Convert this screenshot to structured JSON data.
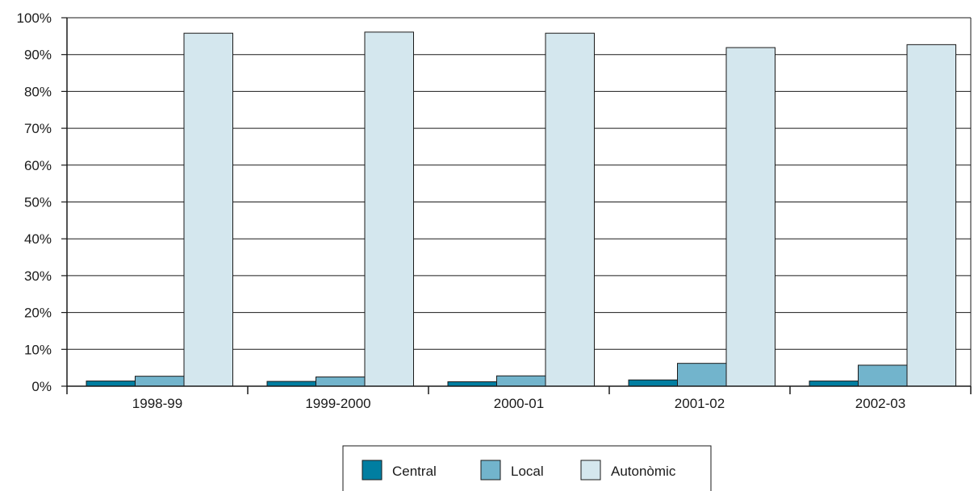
{
  "chart_data": {
    "type": "bar",
    "categories": [
      "1998-99",
      "1999-2000",
      "2000-01",
      "2001-02",
      "2002-03"
    ],
    "series": [
      {
        "name": "Central",
        "values": [
          1.4,
          1.3,
          1.2,
          1.7,
          1.4
        ],
        "color": "#007ea1"
      },
      {
        "name": "Local",
        "values": [
          2.7,
          2.5,
          2.8,
          6.2,
          5.7
        ],
        "color": "#72b4cc"
      },
      {
        "name": "Autonòmic",
        "values": [
          95.8,
          96.1,
          95.8,
          91.9,
          92.7
        ],
        "color": "#d4e7ee"
      }
    ],
    "yticks": [
      "0%",
      "10%",
      "20%",
      "30%",
      "40%",
      "50%",
      "60%",
      "70%",
      "80%",
      "90%",
      "100%"
    ],
    "ylim": [
      0,
      100
    ],
    "grid": true,
    "legend_position": "bottom-center",
    "title": "",
    "xlabel": "",
    "ylabel": ""
  }
}
